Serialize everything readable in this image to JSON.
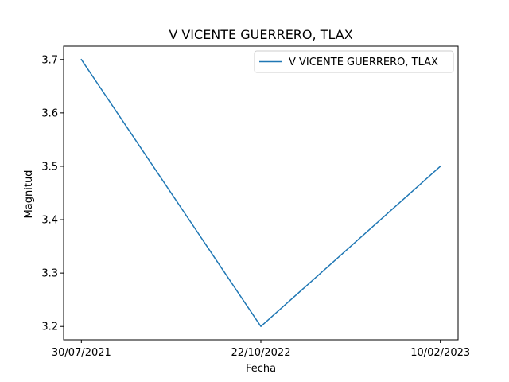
{
  "chart_data": {
    "type": "line",
    "title": "V VICENTE GUERRERO, TLAX",
    "xlabel": "Fecha",
    "ylabel": "Magnitud",
    "categories": [
      "30/07/2021",
      "22/10/2022",
      "10/02/2023"
    ],
    "series": [
      {
        "name": "V VICENTE GUERRERO, TLAX",
        "values": [
          3.7,
          3.2,
          3.5
        ],
        "color": "#1f77b4"
      }
    ],
    "ylim": [
      3.175,
      3.725
    ],
    "yticks": [
      3.2,
      3.3,
      3.4,
      3.5,
      3.6,
      3.7
    ],
    "ytick_labels": [
      "3.2",
      "3.3",
      "3.4",
      "3.5",
      "3.6",
      "3.7"
    ],
    "grid": false,
    "legend_position": "top-right"
  }
}
